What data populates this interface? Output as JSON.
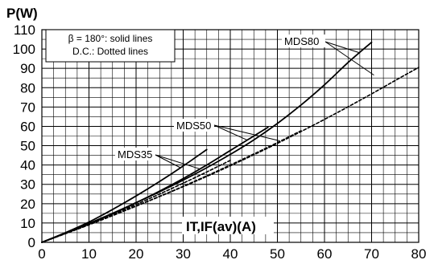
{
  "chart_data": {
    "type": "line",
    "ylabel": "P(W)",
    "xlabel": "IT,IF(av)(A)",
    "xlim": [
      0,
      80
    ],
    "ylim": [
      0,
      110
    ],
    "x_ticks": [
      "0",
      "10",
      "20",
      "30",
      "40",
      "50",
      "60",
      "70",
      "80"
    ],
    "y_ticks": [
      "0",
      "10",
      "20",
      "30",
      "40",
      "50",
      "60",
      "70",
      "80",
      "90",
      "100",
      "110"
    ],
    "grid": true,
    "legend": {
      "placement": "top-left",
      "lines": [
        "β = 180°: solid lines",
        "D.C.: Dotted lines"
      ]
    },
    "series": [
      {
        "name": "MDS35",
        "style": "solid",
        "points": [
          [
            0,
            0
          ],
          [
            5,
            5
          ],
          [
            10,
            10.5
          ],
          [
            15,
            17
          ],
          [
            20,
            24
          ],
          [
            25,
            31.5
          ],
          [
            30,
            39.5
          ],
          [
            35,
            48
          ]
        ]
      },
      {
        "name": "MDS35",
        "style": "dotted",
        "points": [
          [
            0,
            0
          ],
          [
            5,
            4.6
          ],
          [
            10,
            9.4
          ],
          [
            15,
            14.4
          ],
          [
            20,
            19.6
          ],
          [
            25,
            25
          ],
          [
            30,
            30.6
          ],
          [
            35,
            36.4
          ],
          [
            40,
            42.4
          ]
        ]
      },
      {
        "name": "MDS50",
        "style": "solid",
        "points": [
          [
            0,
            0
          ],
          [
            5,
            4.7
          ],
          [
            10,
            9.5
          ],
          [
            15,
            14.8
          ],
          [
            20,
            20.5
          ],
          [
            25,
            26.5
          ],
          [
            30,
            33
          ],
          [
            35,
            40
          ],
          [
            40,
            47.5
          ],
          [
            45,
            55
          ],
          [
            48,
            59.5
          ]
        ]
      },
      {
        "name": "MDS50",
        "style": "dotted",
        "points": [
          [
            0,
            0
          ],
          [
            5,
            4.5
          ],
          [
            10,
            9.1
          ],
          [
            15,
            13.9
          ],
          [
            20,
            18.8
          ],
          [
            25,
            23.8
          ],
          [
            30,
            29
          ],
          [
            35,
            34.4
          ],
          [
            40,
            40
          ],
          [
            45,
            45.7
          ],
          [
            50,
            51.6
          ],
          [
            55,
            57.7
          ]
        ]
      },
      {
        "name": "MDS80",
        "style": "solid",
        "points": [
          [
            0,
            0
          ],
          [
            5,
            4.8
          ],
          [
            10,
            9.8
          ],
          [
            15,
            15
          ],
          [
            20,
            20.5
          ],
          [
            25,
            26.2
          ],
          [
            30,
            32.2
          ],
          [
            35,
            38.6
          ],
          [
            40,
            45.5
          ],
          [
            45,
            53
          ],
          [
            50,
            61.5
          ],
          [
            55,
            71
          ],
          [
            60,
            81.5
          ],
          [
            65,
            93
          ],
          [
            70,
            103.5
          ]
        ]
      },
      {
        "name": "MDS80",
        "style": "dotted",
        "points": [
          [
            0,
            0
          ],
          [
            5,
            4.5
          ],
          [
            10,
            9.1
          ],
          [
            15,
            13.8
          ],
          [
            20,
            18.7
          ],
          [
            25,
            23.7
          ],
          [
            30,
            28.8
          ],
          [
            35,
            34.1
          ],
          [
            40,
            39.6
          ],
          [
            45,
            45.3
          ],
          [
            50,
            51.2
          ],
          [
            55,
            57.3
          ],
          [
            60,
            63.6
          ],
          [
            65,
            70.1
          ],
          [
            70,
            76.8
          ],
          [
            75,
            83.7
          ],
          [
            80,
            90.5
          ]
        ]
      }
    ],
    "annotations": [
      {
        "text": "MDS35",
        "at": [
          32,
          52
        ]
      },
      {
        "text": "MDS50",
        "at": [
          41,
          61
        ]
      },
      {
        "text": "MDS80",
        "at": [
          65,
          104
        ]
      }
    ]
  }
}
